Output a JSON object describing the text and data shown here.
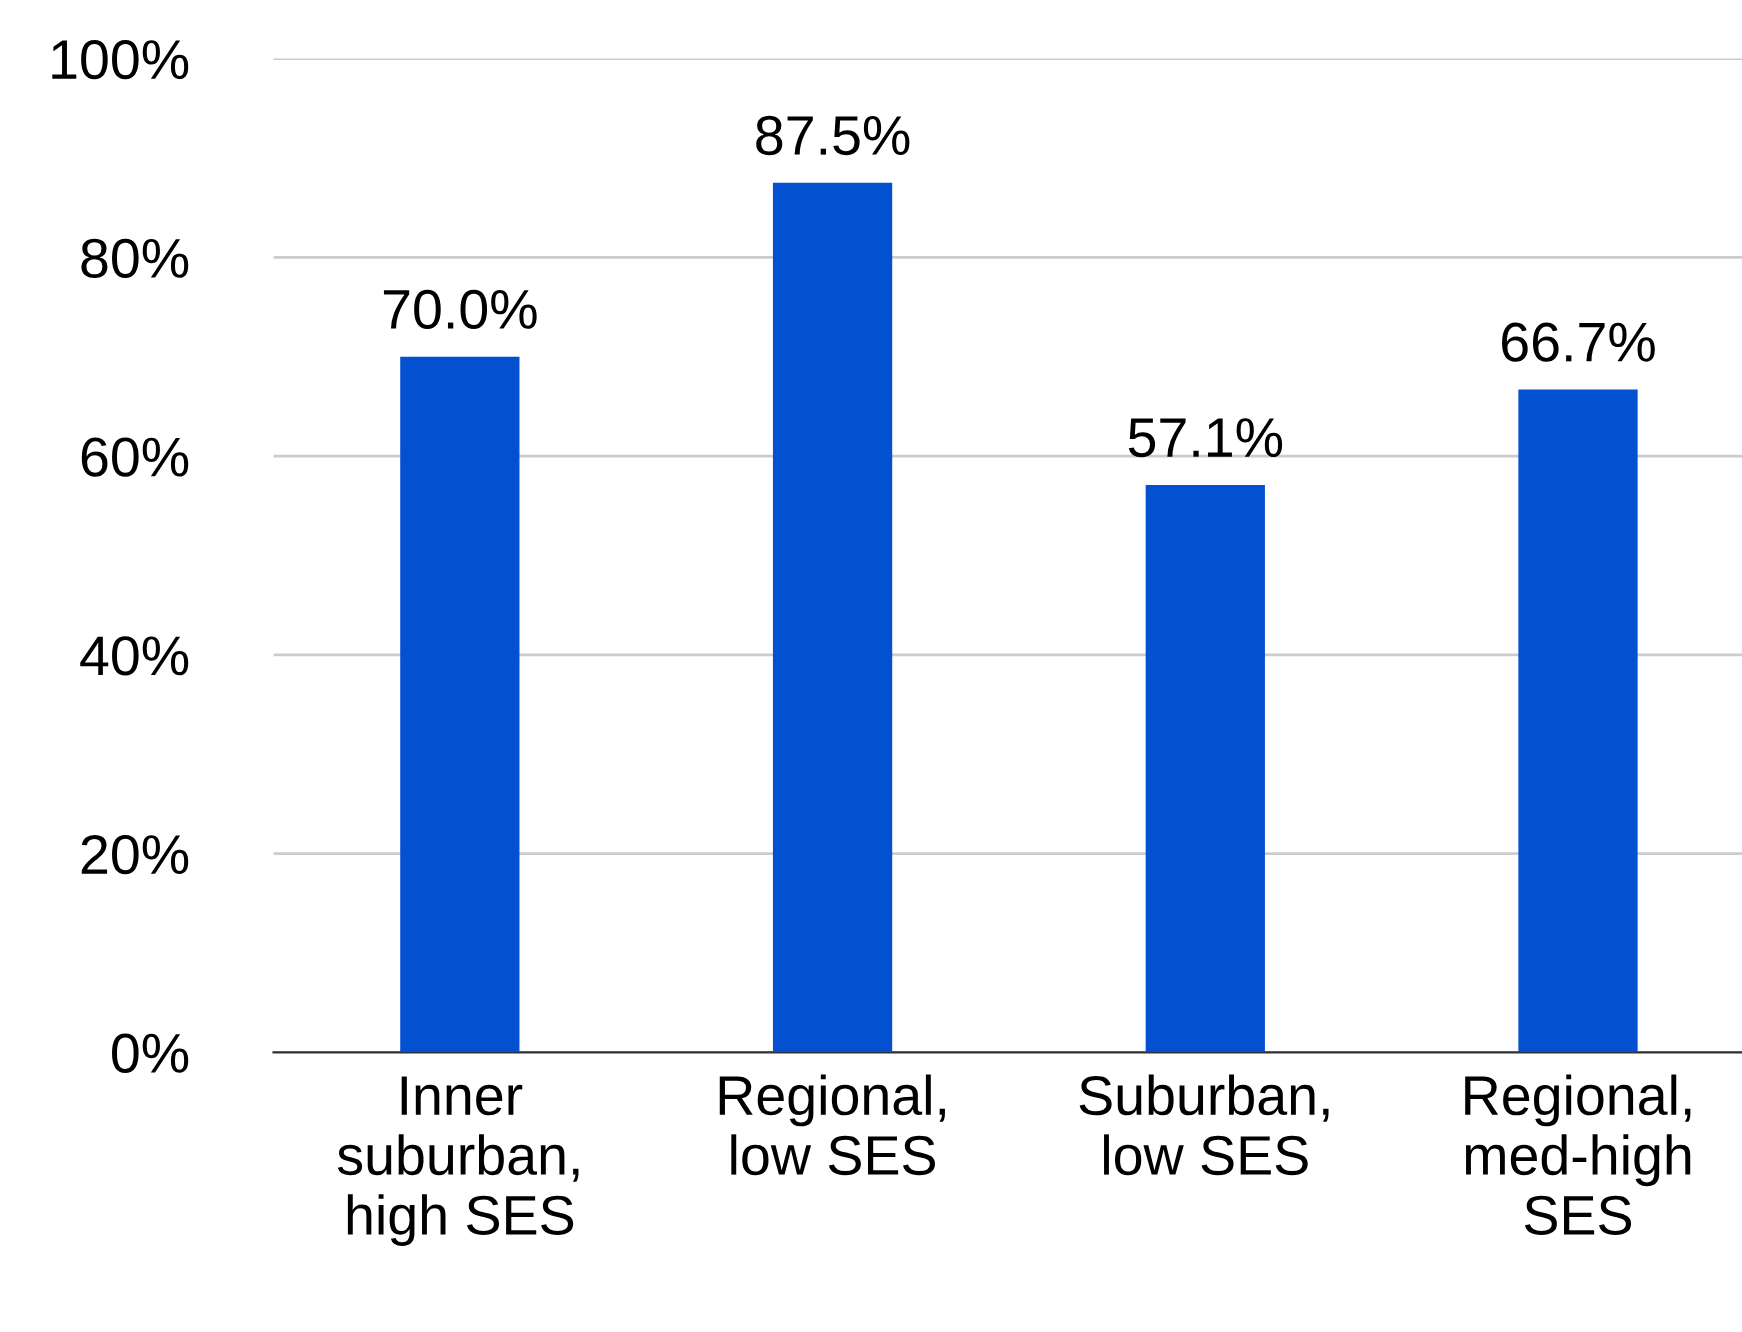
{
  "chart_data": {
    "type": "bar",
    "categories": [
      "Inner\nsuburban,\nhigh SES",
      "Regional,\nlow SES",
      "Suburban,\nlow SES",
      "Regional,\nmed-high\nSES"
    ],
    "values": [
      70.0,
      87.5,
      57.1,
      66.7
    ],
    "value_labels": [
      "70.0%",
      "87.5%",
      "57.1%",
      "66.7%"
    ],
    "color": "#0350d1",
    "ylim": [
      0,
      100
    ],
    "yticks": [
      {
        "value": 0,
        "label": "0%"
      },
      {
        "value": 20,
        "label": "20%"
      },
      {
        "value": 40,
        "label": "40%"
      },
      {
        "value": 60,
        "label": "60%"
      },
      {
        "value": 80,
        "label": "80%"
      },
      {
        "value": 100,
        "label": "100%"
      }
    ],
    "grid": "y"
  }
}
